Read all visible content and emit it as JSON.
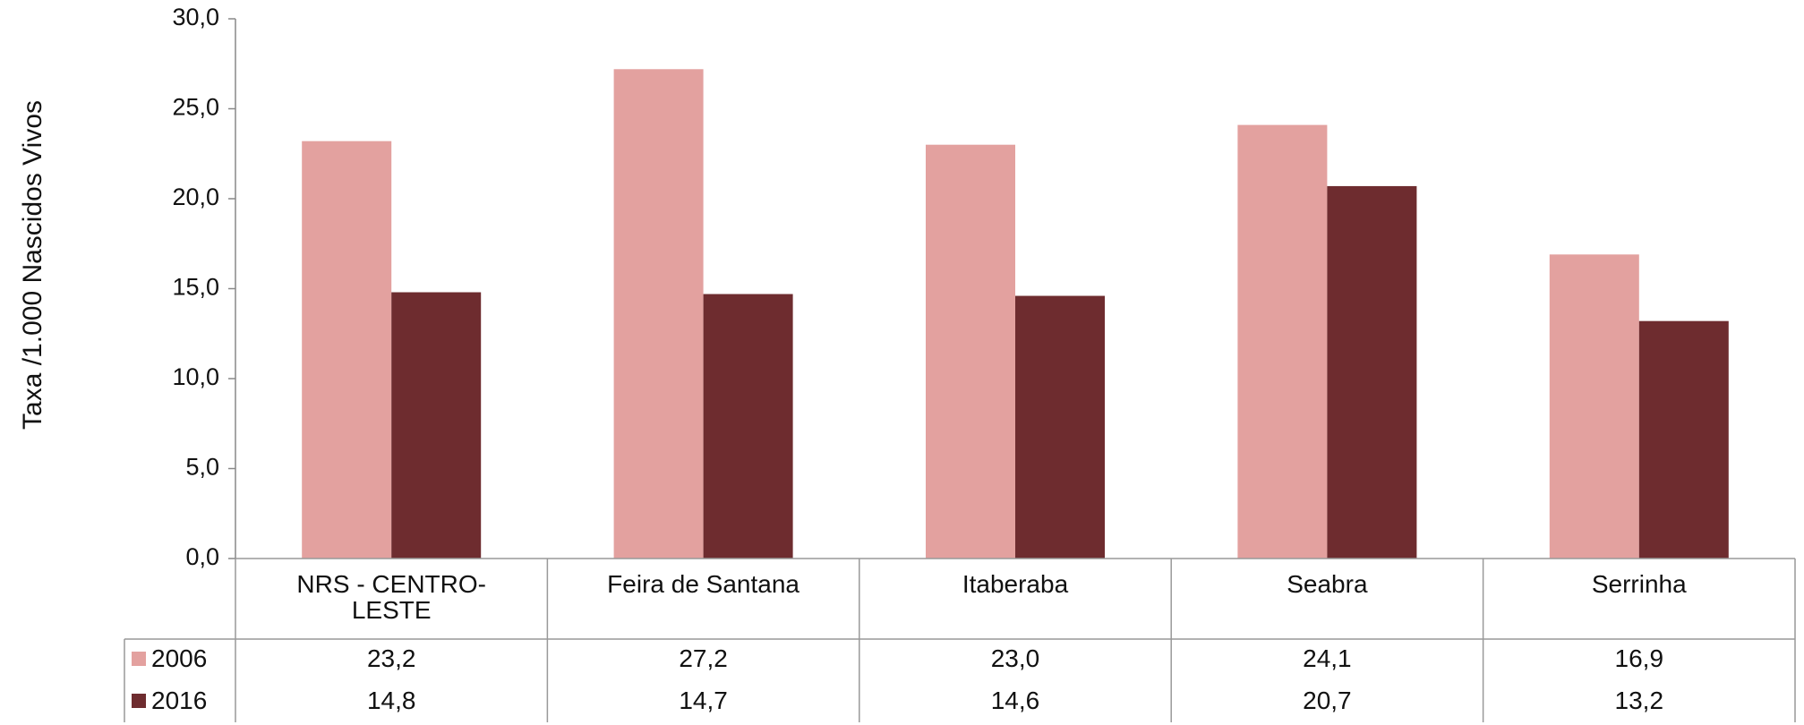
{
  "chart_data": {
    "type": "bar",
    "y_label": "Taxa /1.000 Nascidos Vivos",
    "categories": [
      "NRS - CENTRO-LESTE",
      "Feira de Santana",
      "Itaberaba",
      "Seabra",
      "Serrinha"
    ],
    "series": [
      {
        "name": "2006",
        "color": "#e3a19f",
        "values": [
          23.2,
          27.2,
          23.0,
          24.1,
          16.9
        ],
        "value_labels": [
          "23,2",
          "27,2",
          "23,0",
          "24,1",
          "16,9"
        ]
      },
      {
        "name": "2016",
        "color": "#6e2c2f",
        "values": [
          14.8,
          14.7,
          14.6,
          20.7,
          13.2
        ],
        "value_labels": [
          "14,8",
          "14,7",
          "14,6",
          "20,7",
          "13,2"
        ]
      }
    ],
    "ylim": [
      0,
      30
    ],
    "yticks": [
      {
        "value": 0,
        "label": "0,0"
      },
      {
        "value": 5,
        "label": "5,0"
      },
      {
        "value": 10,
        "label": "10,0"
      },
      {
        "value": 15,
        "label": "15,0"
      },
      {
        "value": 20,
        "label": "20,0"
      },
      {
        "value": 25,
        "label": "25,0"
      },
      {
        "value": 30,
        "label": "30,0"
      }
    ],
    "grid": false
  }
}
